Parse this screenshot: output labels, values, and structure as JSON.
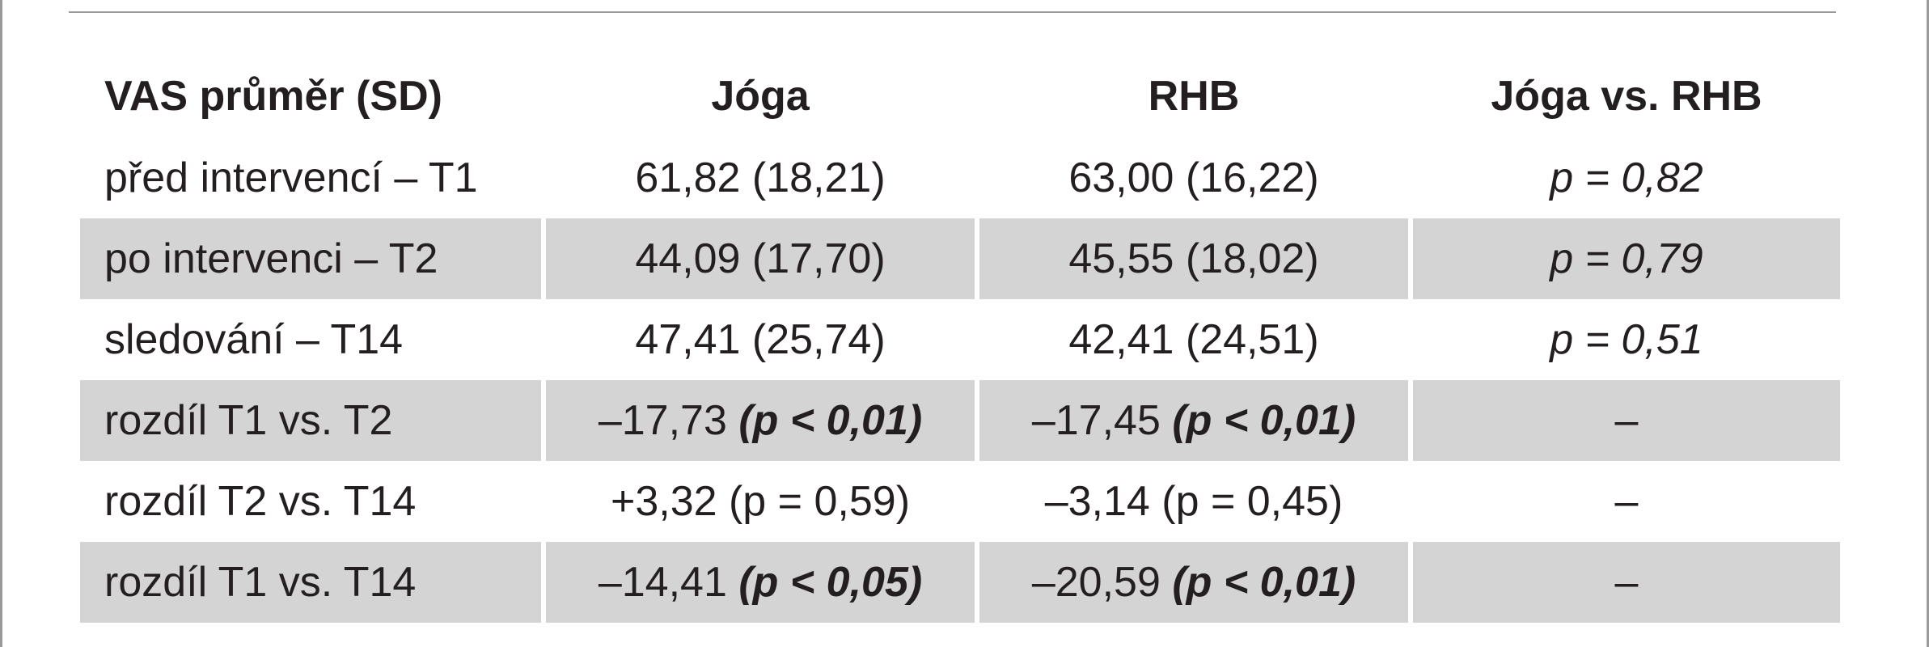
{
  "table": {
    "headers": [
      "VAS průměr (SD)",
      "Jóga",
      "RHB",
      "Jóga vs. RHB"
    ],
    "rows": [
      {
        "label": "před intervencí – T1",
        "joga": "61,82 (18,21)",
        "joga_p": "",
        "rhb": "63,00 (16,22)",
        "rhb_p": "",
        "compare": "p = 0,82",
        "shaded": false
      },
      {
        "label": "po intervenci – T2",
        "joga": "44,09 (17,70)",
        "joga_p": "",
        "rhb": "45,55 (18,02)",
        "rhb_p": "",
        "compare": "p = 0,79",
        "shaded": true
      },
      {
        "label": "sledování – T14",
        "joga": "47,41 (25,74)",
        "joga_p": "",
        "rhb": "42,41 (24,51)",
        "rhb_p": "",
        "compare": "p = 0,51",
        "shaded": false
      },
      {
        "label": "rozdíl T1 vs. T2",
        "joga": "–17,73 ",
        "joga_p": "(p < 0,01)",
        "rhb": "–17,45 ",
        "rhb_p": "(p < 0,01)",
        "compare": "–",
        "shaded": true
      },
      {
        "label": "rozdíl T2 vs. T14",
        "joga": "+3,32 (p = 0,59)",
        "joga_p": "",
        "rhb": "–3,14 (p = 0,45)",
        "rhb_p": "",
        "compare": "–",
        "shaded": false
      },
      {
        "label": "rozdíl T1 vs. T14",
        "joga": "–14,41 ",
        "joga_p": "(p < 0,05)",
        "rhb": "–20,59 ",
        "rhb_p": "(p < 0,01)",
        "compare": "–",
        "shaded": true
      }
    ],
    "colors": {
      "shade": "#d4d4d4",
      "rule": "#9a9a9a",
      "text": "#231f20"
    }
  }
}
